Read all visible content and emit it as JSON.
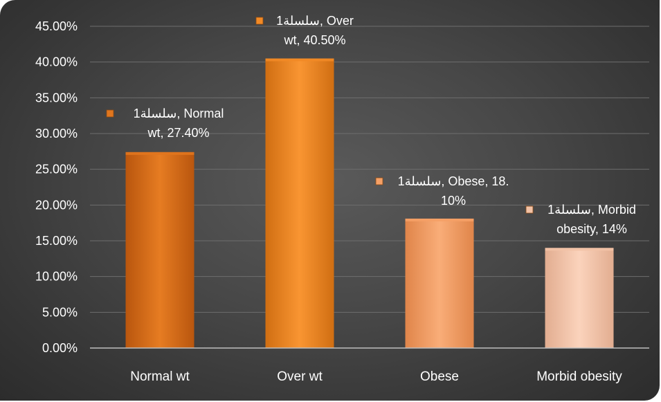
{
  "chart_data": {
    "type": "bar",
    "categories": [
      "Normal wt",
      "Over wt",
      "Obese",
      "Morbid obesity"
    ],
    "values": [
      27.4,
      40.5,
      18.1,
      14.0
    ],
    "ylim": [
      0,
      45
    ],
    "yticks": [
      "0.00%",
      "5.00%",
      "10.00%",
      "15.00%",
      "20.00%",
      "25.00%",
      "30.00%",
      "35.00%",
      "40.00%",
      "45.00%"
    ],
    "grid": true,
    "bar_colors": [
      "#e0761e",
      "#f28a26",
      "#f5a066",
      "#f2c2a6"
    ],
    "data_labels": [
      {
        "line1": "سلسلة1, Normal",
        "line2": "wt, 27.40%"
      },
      {
        "line1": "سلسلة1, Over",
        "line2": "wt, 40.50%"
      },
      {
        "line1": "سلسلة1, Obese, 18.",
        "line2": "10%"
      },
      {
        "line1": "سلسلة1, Morbid",
        "line2": "obesity, 14%"
      }
    ]
  }
}
